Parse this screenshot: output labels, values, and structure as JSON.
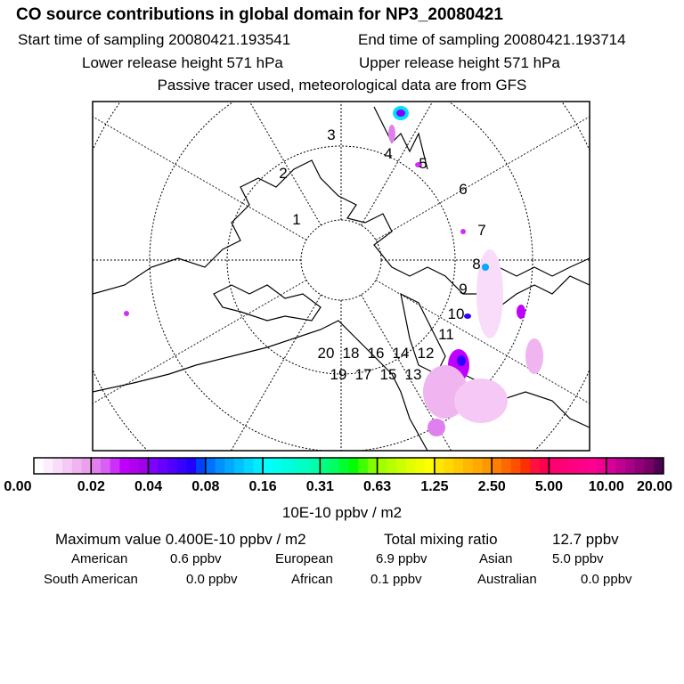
{
  "header": {
    "title": "CO  source contributions in global domain for NP3_20080421",
    "start_label": "Start time of sampling 20080421.193541",
    "end_label": "End time of sampling 20080421.193714",
    "lower_label": "Lower release height  571 hPa",
    "upper_label": "Upper release height  571 hPa",
    "note": "Passive tracer used, meteorological data are from GFS"
  },
  "map": {
    "day_labels": [
      "1",
      "2",
      "3",
      "4",
      "5",
      "6",
      "7",
      "8",
      "9",
      "10",
      "11",
      "12",
      "13",
      "14",
      "15",
      "16",
      "17",
      "18",
      "19",
      "20"
    ]
  },
  "colorbar": {
    "ticks": [
      "0.00",
      "0.02",
      "0.04",
      "0.08",
      "0.16",
      "0.31",
      "0.63",
      "1.25",
      "2.50",
      "5.00",
      "10.00",
      "20.00"
    ],
    "unit": "10E-10 ppbv / m2",
    "colors": [
      [
        "#ffffff",
        "#fdeefd",
        "#f9dcf9",
        "#f5c8f5",
        "#f0b4f0",
        "#eba0eb"
      ],
      [
        "#e080f0",
        "#d860f4",
        "#cc30f8",
        "#c000ff",
        "#b000f0",
        "#a000e8"
      ],
      [
        "#8000ff",
        "#6800ff",
        "#5000ff",
        "#3800ff",
        "#2000ff",
        "#0040ff"
      ],
      [
        "#0070ff",
        "#0090ff",
        "#00a8ff",
        "#00c0ff",
        "#00d8ff",
        "#00ecff"
      ],
      [
        "#00ffff",
        "#00fff0",
        "#00ffe0",
        "#00ffd0",
        "#00ffc0",
        "#00ffa8"
      ],
      [
        "#00ff80",
        "#00ff60",
        "#00ff30",
        "#00ff00",
        "#40ff00",
        "#80ff00"
      ],
      [
        "#a0ff00",
        "#b8ff00",
        "#ccff00",
        "#e0ff00",
        "#f0ff00",
        "#ffff00"
      ],
      [
        "#ffe800",
        "#ffd800",
        "#ffc800",
        "#ffb800",
        "#ffa800",
        "#ff9800"
      ],
      [
        "#ff8000",
        "#ff6800",
        "#ff5000",
        "#ff3000",
        "#ff1040",
        "#ff0050"
      ],
      [
        "#ff0070",
        "#ff0078",
        "#ff0080",
        "#ff0088",
        "#ff0090",
        "#f00090"
      ],
      [
        "#d80098",
        "#c00090",
        "#a80088",
        "#900078",
        "#780068",
        "#500050"
      ]
    ]
  },
  "summary": {
    "max_label": "Maximum value  0.400E-10 ppbv / m2",
    "total_label": "Total mixing ratio",
    "total_value": "12.7 ppbv",
    "regions": [
      {
        "name": "American",
        "value": "0.6 ppbv"
      },
      {
        "name": "European",
        "value": "6.9 ppbv"
      },
      {
        "name": "Asian",
        "value": "5.0 ppbv"
      },
      {
        "name": "South American",
        "value": "0.0 ppbv"
      },
      {
        "name": "African",
        "value": "0.1 ppbv"
      },
      {
        "name": "Australian",
        "value": "0.0 ppbv"
      }
    ]
  }
}
